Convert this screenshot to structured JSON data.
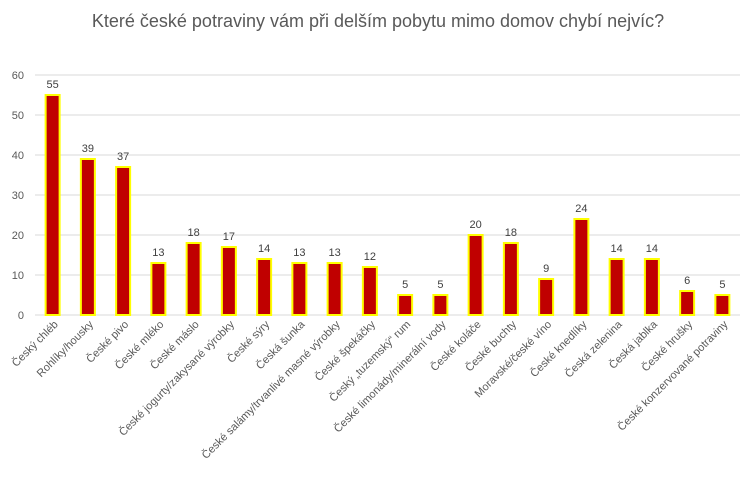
{
  "chart_data": {
    "type": "bar",
    "title": "Které české potraviny vám při delším pobytu mimo domov chybí nejvíc?",
    "xlabel": "",
    "ylabel": "",
    "ylim": [
      0,
      60
    ],
    "yticks": [
      0,
      10,
      20,
      30,
      40,
      50,
      60
    ],
    "grid": true,
    "legend": "none",
    "bar_color": "#C00000",
    "bar_edge_color": "#FFFF00",
    "categories": [
      "Český chléb",
      "Rohlíky/housky",
      "České pivo",
      "České mléko",
      "České máslo",
      "České jogurty/zakysané výrobky",
      "České sýry",
      "Česká šunka",
      "České salámy/trvanlivé masné výrobky",
      "České špekáčky",
      "Český „tuzemský“ rum",
      "České limonády/minerální vody",
      "České koláče",
      "České buchty",
      "Moravské/české víno",
      "České knedlíky",
      "Česká zelenina",
      "Česká jablka",
      "České hrušky",
      "České konzervované potraviny"
    ],
    "values": [
      55,
      39,
      37,
      13,
      18,
      17,
      14,
      13,
      13,
      12,
      5,
      5,
      20,
      18,
      9,
      24,
      14,
      14,
      6,
      5
    ],
    "data_labels": [
      55,
      39,
      37,
      13,
      18,
      17,
      14,
      13,
      13,
      12,
      5,
      5,
      20,
      18,
      9,
      24,
      14,
      14,
      6,
      5
    ]
  }
}
